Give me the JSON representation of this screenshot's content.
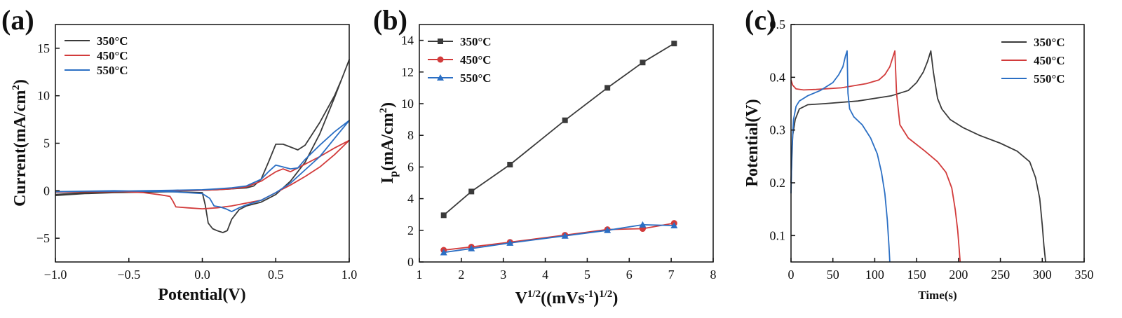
{
  "colors": {
    "s350": "#3a3a3a",
    "s450": "#d23b3b",
    "s550": "#2b6fc4",
    "axis": "#111111"
  },
  "chart_data": [
    {
      "panel": "(a)",
      "type": "line",
      "title": "",
      "xlabel": "Potential(V)",
      "ylabel": "Current(mA/cm²)",
      "ylabel_parts": {
        "base": "Current(mA/cm",
        "sup": "2",
        "end": ")"
      },
      "xlim": [
        -1.0,
        1.0
      ],
      "ylim": [
        -7.5,
        17.5
      ],
      "xticks": [
        -1.0,
        -0.5,
        0.0,
        0.5,
        1.0
      ],
      "xtick_labels": [
        "−1.0",
        "−0.5",
        "0.0",
        "0.5",
        "1.0"
      ],
      "yticks": [
        -5,
        0,
        5,
        10,
        15
      ],
      "ytick_labels": [
        "−5",
        "0",
        "5",
        "10",
        "15"
      ],
      "legend": [
        "350°C",
        "450°C",
        "550°C"
      ],
      "legend_position": "top-left",
      "series": [
        {
          "name": "350°C",
          "color_key": "s350",
          "x": [
            -1.0,
            -0.8,
            -0.6,
            -0.4,
            -0.2,
            0.0,
            0.02,
            0.04,
            0.07,
            0.1,
            0.14,
            0.17,
            0.2,
            0.25,
            0.3,
            0.4,
            0.5,
            0.6,
            0.7,
            0.8,
            0.9,
            1.0,
            0.95,
            0.9,
            0.8,
            0.7,
            0.65,
            0.6,
            0.55,
            0.5,
            0.45,
            0.4,
            0.35,
            0.3,
            0.2,
            0.1,
            0.0,
            -0.2,
            -0.4,
            -0.6,
            -0.8,
            -1.0
          ],
          "y": [
            -0.5,
            -0.3,
            -0.2,
            -0.15,
            -0.1,
            -0.2,
            -1.5,
            -3.4,
            -4.0,
            -4.2,
            -4.4,
            -4.2,
            -3.0,
            -2.0,
            -1.6,
            -1.2,
            -0.4,
            1.0,
            3.0,
            6.0,
            9.8,
            13.8,
            11.8,
            10.0,
            7.2,
            4.8,
            4.3,
            4.6,
            4.9,
            4.9,
            3.0,
            1.2,
            0.5,
            0.3,
            0.2,
            0.1,
            0.05,
            0.0,
            -0.05,
            -0.1,
            -0.2,
            -0.4
          ]
        },
        {
          "name": "450°C",
          "color_key": "s450",
          "x": [
            -1.0,
            -0.8,
            -0.6,
            -0.4,
            -0.3,
            -0.22,
            -0.2,
            -0.18,
            -0.1,
            0.0,
            0.1,
            0.2,
            0.3,
            0.4,
            0.5,
            0.6,
            0.7,
            0.8,
            0.9,
            1.0,
            0.9,
            0.8,
            0.7,
            0.6,
            0.55,
            0.5,
            0.4,
            0.3,
            0.2,
            0.1,
            0.0,
            -0.2,
            -0.4,
            -0.6,
            -0.8,
            -1.0
          ],
          "y": [
            -0.15,
            -0.1,
            -0.05,
            -0.2,
            -0.4,
            -0.6,
            -1.1,
            -1.7,
            -1.8,
            -1.9,
            -1.8,
            -1.6,
            -1.3,
            -1.0,
            -0.2,
            0.6,
            1.5,
            2.5,
            3.8,
            5.3,
            4.5,
            3.6,
            2.8,
            2.0,
            2.3,
            2.0,
            1.0,
            0.4,
            0.2,
            0.1,
            0.05,
            0.0,
            -0.05,
            -0.1,
            -0.1,
            -0.1
          ]
        },
        {
          "name": "550°C",
          "color_key": "s550",
          "x": [
            -1.0,
            -0.8,
            -0.6,
            -0.4,
            -0.2,
            0.0,
            0.05,
            0.08,
            0.12,
            0.16,
            0.2,
            0.25,
            0.3,
            0.4,
            0.5,
            0.6,
            0.7,
            0.8,
            0.9,
            1.0,
            0.9,
            0.8,
            0.7,
            0.65,
            0.6,
            0.55,
            0.5,
            0.45,
            0.4,
            0.3,
            0.2,
            0.1,
            0.0,
            -0.2,
            -0.4,
            -0.6,
            -0.8,
            -1.0
          ],
          "y": [
            -0.1,
            -0.05,
            0.0,
            -0.05,
            -0.1,
            -0.3,
            -0.8,
            -1.6,
            -1.7,
            -1.9,
            -2.2,
            -1.8,
            -1.5,
            -1.0,
            -0.2,
            0.8,
            2.2,
            3.6,
            5.5,
            7.4,
            6.2,
            4.8,
            3.3,
            2.4,
            2.3,
            2.5,
            2.7,
            2.0,
            1.2,
            0.5,
            0.3,
            0.2,
            0.1,
            0.05,
            0.0,
            -0.05,
            -0.05,
            -0.1
          ]
        }
      ]
    },
    {
      "panel": "(b)",
      "type": "line",
      "title": "",
      "xlabel": "V^1/2((mVs^-1)^1/2)",
      "xlabel_parts": {
        "a": "V",
        "a_sup": "1/2",
        "b": "((mVs",
        "b_sup": "-1",
        "c": ")",
        "c_sup": "1/2",
        "d": ")"
      },
      "ylabel": "Ip(mA/cm²)",
      "ylabel_parts": {
        "base": "I",
        "sub": "p",
        "mid": "(mA/cm",
        "sup": "2",
        "end": ")"
      },
      "xlim": [
        1,
        8
      ],
      "ylim": [
        0,
        15
      ],
      "xticks": [
        1,
        2,
        3,
        4,
        5,
        6,
        7,
        8
      ],
      "xtick_labels": [
        "1",
        "2",
        "3",
        "4",
        "5",
        "6",
        "7",
        "8"
      ],
      "yticks": [
        0,
        2,
        4,
        6,
        8,
        10,
        12,
        14
      ],
      "ytick_labels": [
        "0",
        "2",
        "4",
        "6",
        "8",
        "10",
        "12",
        "14"
      ],
      "legend": [
        "350°C",
        "450°C",
        "550°C"
      ],
      "legend_position": "top-left",
      "series": [
        {
          "name": "350°C",
          "color_key": "s350",
          "marker": "square",
          "x": [
            1.58,
            2.24,
            3.16,
            4.47,
            5.48,
            6.32,
            7.07
          ],
          "y": [
            2.95,
            4.45,
            6.15,
            8.95,
            11.0,
            12.6,
            13.8
          ]
        },
        {
          "name": "450°C",
          "color_key": "s450",
          "marker": "circle",
          "x": [
            1.58,
            2.24,
            3.16,
            4.47,
            5.48,
            6.32,
            7.07
          ],
          "y": [
            0.75,
            0.95,
            1.25,
            1.7,
            2.05,
            2.1,
            2.45
          ]
        },
        {
          "name": "550°C",
          "color_key": "s550",
          "marker": "triangle",
          "x": [
            1.58,
            2.24,
            3.16,
            4.47,
            5.48,
            6.32,
            7.07
          ],
          "y": [
            0.6,
            0.85,
            1.2,
            1.65,
            2.0,
            2.35,
            2.3
          ]
        }
      ]
    },
    {
      "panel": "(c)",
      "type": "line",
      "title": "",
      "xlabel": "Time(s)",
      "ylabel": "Potential(V)",
      "xlim": [
        0,
        350
      ],
      "ylim": [
        0.05,
        0.5
      ],
      "xticks": [
        0,
        50,
        100,
        150,
        200,
        250,
        300,
        350
      ],
      "xtick_labels": [
        "0",
        "50",
        "100",
        "150",
        "200",
        "250",
        "300",
        "350"
      ],
      "yticks": [
        0.1,
        0.2,
        0.3,
        0.4,
        0.5
      ],
      "ytick_labels": [
        "0.1",
        "0.2",
        "0.3",
        "0.4",
        "0.5"
      ],
      "legend": [
        "350°C",
        "450°C",
        "550°C"
      ],
      "legend_position": "top-right",
      "series": [
        {
          "name": "350°C",
          "color_key": "s350",
          "x": [
            0,
            2,
            5,
            10,
            20,
            40,
            80,
            120,
            140,
            150,
            158,
            163,
            167,
            170,
            175,
            180,
            190,
            205,
            225,
            250,
            270,
            285,
            292,
            297,
            300,
            302,
            304
          ],
          "y": [
            0.2,
            0.29,
            0.32,
            0.34,
            0.348,
            0.35,
            0.355,
            0.365,
            0.375,
            0.39,
            0.41,
            0.43,
            0.45,
            0.41,
            0.36,
            0.34,
            0.32,
            0.305,
            0.29,
            0.275,
            0.26,
            0.24,
            0.21,
            0.17,
            0.12,
            0.08,
            0.05
          ]
        },
        {
          "name": "450°C",
          "color_key": "s450",
          "x": [
            0,
            2,
            6,
            15,
            30,
            60,
            90,
            105,
            112,
            118,
            122,
            124,
            126,
            130,
            140,
            160,
            175,
            185,
            192,
            196,
            199,
            201,
            202
          ],
          "y": [
            0.395,
            0.385,
            0.378,
            0.376,
            0.377,
            0.38,
            0.388,
            0.395,
            0.405,
            0.42,
            0.44,
            0.45,
            0.37,
            0.31,
            0.285,
            0.26,
            0.24,
            0.22,
            0.19,
            0.15,
            0.11,
            0.07,
            0.05
          ]
        },
        {
          "name": "550°C",
          "color_key": "s550",
          "x": [
            0,
            1,
            3,
            6,
            10,
            20,
            35,
            50,
            57,
            62,
            65,
            67,
            68,
            70,
            75,
            85,
            95,
            103,
            108,
            112,
            115,
            117,
            118
          ],
          "y": [
            0.18,
            0.26,
            0.32,
            0.345,
            0.355,
            0.365,
            0.375,
            0.39,
            0.405,
            0.42,
            0.44,
            0.45,
            0.37,
            0.34,
            0.325,
            0.31,
            0.285,
            0.255,
            0.22,
            0.18,
            0.13,
            0.08,
            0.05
          ]
        }
      ]
    }
  ]
}
